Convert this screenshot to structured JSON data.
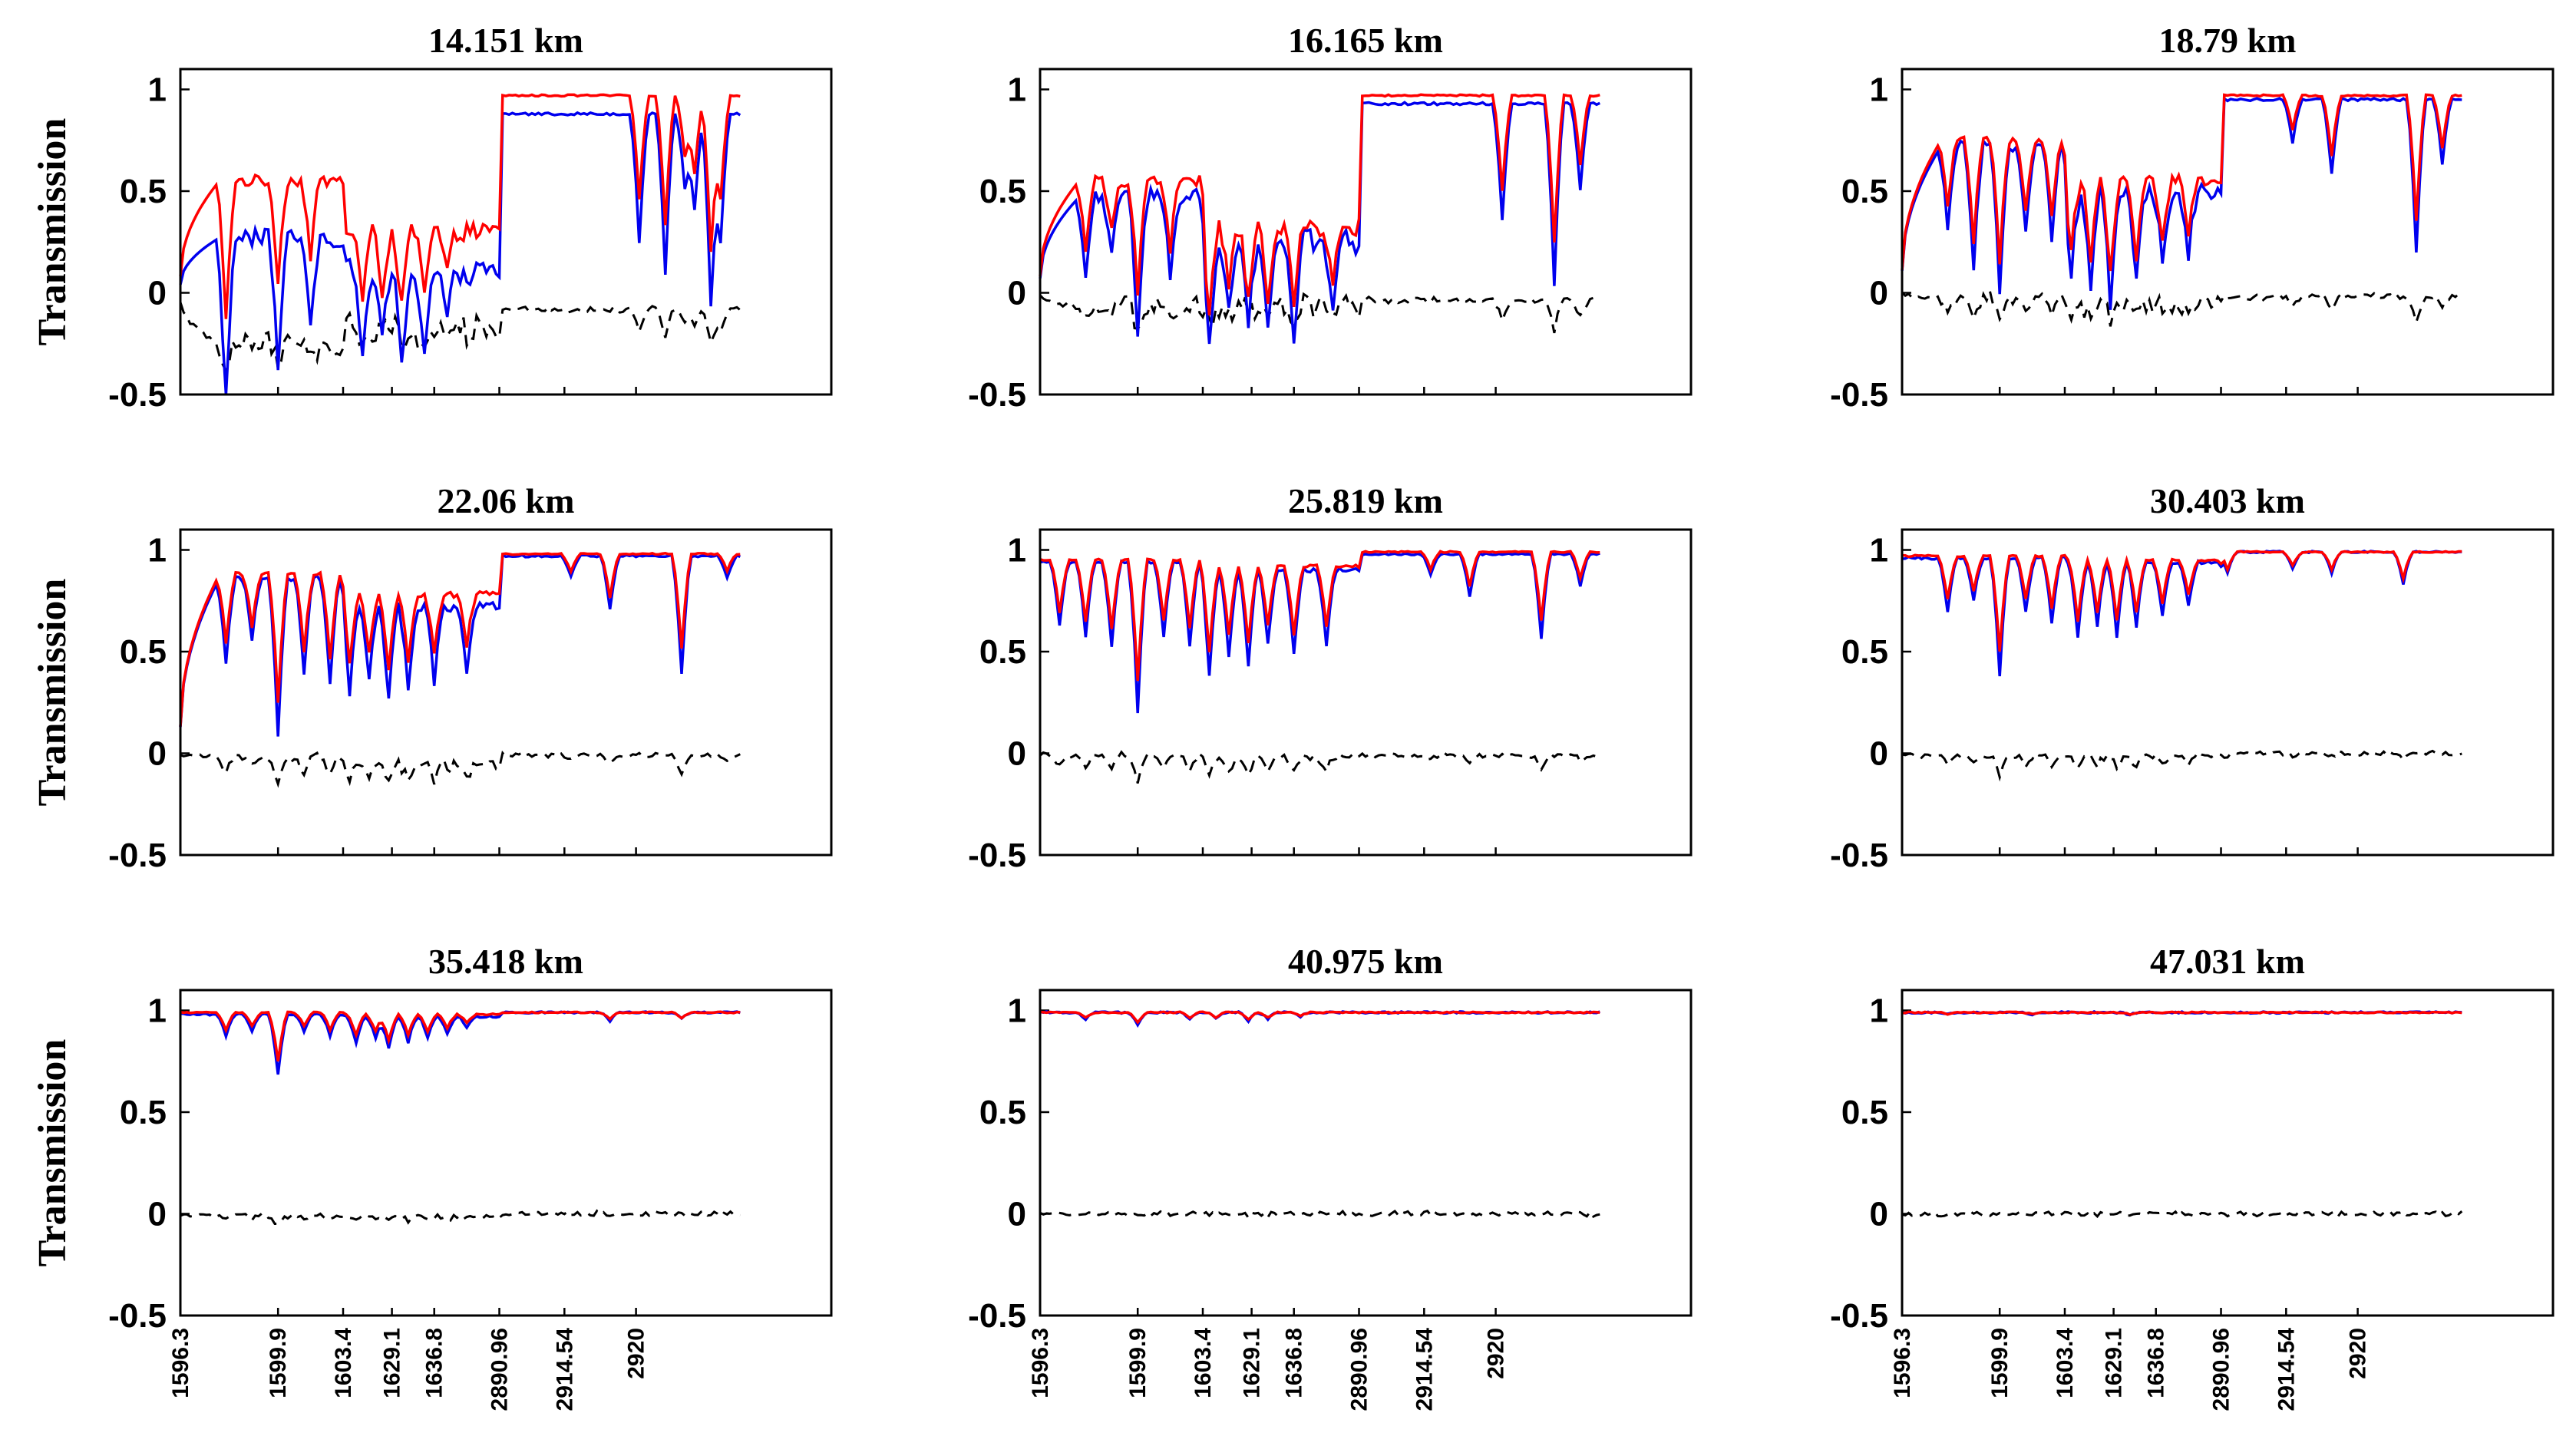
{
  "chart_data": {
    "type": "line",
    "ylabel": "Transmission",
    "ylim": [
      -0.5,
      1.1
    ],
    "yticks": [
      "1",
      "0.5",
      "0",
      "-0.5"
    ],
    "yticks_values": [
      1,
      0.5,
      0,
      -0.5
    ],
    "xticks": [
      "1596.3",
      "1599.9",
      "1603.4",
      "1629.1",
      "1636.8",
      "2890.96",
      "2914.54",
      "2920"
    ],
    "xticks_index": [
      0,
      30,
      50,
      65,
      78,
      98,
      118,
      140
    ],
    "x_range_index": [
      0,
      200
    ],
    "series_names": [
      "blue",
      "red",
      "difference"
    ],
    "series_colors": {
      "blue": "#0000ee",
      "red": "#ff0000",
      "difference": "#000000"
    },
    "panels": [
      {
        "title": "14.151 km",
        "segments": [
          {
            "x0": 0,
            "x1": 50,
            "red": 0.55,
            "blue": 0.27
          },
          {
            "x0": 50,
            "x1": 98,
            "red": 0.3,
            "blue": 0.1
          },
          {
            "x0": 98,
            "x1": 172,
            "red": 0.97,
            "blue": 0.88
          }
        ],
        "dips": [
          [
            14,
            0.82
          ],
          [
            30,
            0.6
          ],
          [
            40,
            0.45
          ],
          [
            56,
            0.4
          ],
          [
            62,
            0.35
          ],
          [
            68,
            0.45
          ],
          [
            75,
            0.38
          ],
          [
            82,
            0.25
          ],
          [
            141,
            0.6
          ],
          [
            149,
            0.75
          ],
          [
            155,
            0.35
          ],
          [
            158,
            0.45
          ],
          [
            163,
            0.9
          ],
          [
            166,
            0.6
          ]
        ]
      },
      {
        "title": "16.165 km",
        "segments": [
          {
            "x0": 0,
            "x1": 50,
            "red": 0.55,
            "blue": 0.47
          },
          {
            "x0": 50,
            "x1": 98,
            "red": 0.32,
            "blue": 0.25
          },
          {
            "x0": 98,
            "x1": 172,
            "red": 0.97,
            "blue": 0.93
          }
        ],
        "dips": [
          [
            14,
            0.4
          ],
          [
            22,
            0.3
          ],
          [
            30,
            0.65
          ],
          [
            40,
            0.4
          ],
          [
            52,
            0.5
          ],
          [
            58,
            0.35
          ],
          [
            64,
            0.45
          ],
          [
            70,
            0.4
          ],
          [
            78,
            0.45
          ],
          [
            90,
            0.35
          ],
          [
            142,
            0.55
          ],
          [
            158,
            0.85
          ],
          [
            166,
            0.4
          ]
        ]
      },
      {
        "title": "18.79 km",
        "segments": [
          {
            "x0": 0,
            "x1": 50,
            "red": 0.75,
            "blue": 0.72
          },
          {
            "x0": 50,
            "x1": 98,
            "red": 0.55,
            "blue": 0.5
          },
          {
            "x0": 98,
            "x1": 172,
            "red": 0.97,
            "blue": 0.95
          }
        ],
        "dips": [
          [
            14,
            0.4
          ],
          [
            22,
            0.6
          ],
          [
            30,
            0.7
          ],
          [
            38,
            0.4
          ],
          [
            46,
            0.45
          ],
          [
            52,
            0.4
          ],
          [
            58,
            0.45
          ],
          [
            64,
            0.55
          ],
          [
            72,
            0.45
          ],
          [
            80,
            0.35
          ],
          [
            88,
            0.3
          ],
          [
            120,
            0.2
          ],
          [
            132,
            0.35
          ],
          [
            158,
            0.72
          ],
          [
            166,
            0.3
          ]
        ]
      },
      {
        "title": "22.06 km",
        "segments": [
          {
            "x0": 0,
            "x1": 50,
            "red": 0.88,
            "blue": 0.86
          },
          {
            "x0": 50,
            "x1": 98,
            "red": 0.78,
            "blue": 0.72
          },
          {
            "x0": 98,
            "x1": 172,
            "red": 0.98,
            "blue": 0.97
          }
        ],
        "dips": [
          [
            14,
            0.4
          ],
          [
            22,
            0.3
          ],
          [
            30,
            0.75
          ],
          [
            38,
            0.45
          ],
          [
            46,
            0.5
          ],
          [
            52,
            0.4
          ],
          [
            58,
            0.35
          ],
          [
            64,
            0.45
          ],
          [
            70,
            0.4
          ],
          [
            78,
            0.35
          ],
          [
            88,
            0.3
          ],
          [
            120,
            0.1
          ],
          [
            132,
            0.25
          ],
          [
            154,
            0.55
          ],
          [
            168,
            0.1
          ]
        ]
      },
      {
        "title": "25.819 km",
        "segments": [
          {
            "x0": 0,
            "x1": 50,
            "red": 0.95,
            "blue": 0.94
          },
          {
            "x0": 50,
            "x1": 98,
            "red": 0.92,
            "blue": 0.9
          },
          {
            "x0": 98,
            "x1": 172,
            "red": 0.99,
            "blue": 0.98
          }
        ],
        "dips": [
          [
            6,
            0.3
          ],
          [
            14,
            0.35
          ],
          [
            22,
            0.4
          ],
          [
            30,
            0.7
          ],
          [
            38,
            0.35
          ],
          [
            46,
            0.4
          ],
          [
            52,
            0.5
          ],
          [
            58,
            0.4
          ],
          [
            64,
            0.45
          ],
          [
            70,
            0.35
          ],
          [
            78,
            0.4
          ],
          [
            88,
            0.35
          ],
          [
            120,
            0.1
          ],
          [
            132,
            0.2
          ],
          [
            154,
            0.4
          ],
          [
            166,
            0.15
          ]
        ]
      },
      {
        "title": "30.403 km",
        "segments": [
          {
            "x0": 0,
            "x1": 50,
            "red": 0.97,
            "blue": 0.96
          },
          {
            "x0": 50,
            "x1": 98,
            "red": 0.95,
            "blue": 0.94
          },
          {
            "x0": 98,
            "x1": 172,
            "red": 0.99,
            "blue": 0.99
          }
        ],
        "dips": [
          [
            14,
            0.25
          ],
          [
            22,
            0.2
          ],
          [
            30,
            0.55
          ],
          [
            38,
            0.25
          ],
          [
            46,
            0.3
          ],
          [
            54,
            0.35
          ],
          [
            60,
            0.3
          ],
          [
            66,
            0.35
          ],
          [
            72,
            0.3
          ],
          [
            80,
            0.25
          ],
          [
            88,
            0.2
          ],
          [
            100,
            0.1
          ],
          [
            120,
            0.08
          ],
          [
            132,
            0.1
          ],
          [
            154,
            0.15
          ]
        ]
      },
      {
        "title": "35.418 km",
        "segments": [
          {
            "x0": 0,
            "x1": 50,
            "red": 0.99,
            "blue": 0.98
          },
          {
            "x0": 50,
            "x1": 98,
            "red": 0.98,
            "blue": 0.97
          },
          {
            "x0": 98,
            "x1": 172,
            "red": 0.99,
            "blue": 0.99
          }
        ],
        "dips": [
          [
            14,
            0.1
          ],
          [
            22,
            0.08
          ],
          [
            30,
            0.28
          ],
          [
            38,
            0.08
          ],
          [
            46,
            0.1
          ],
          [
            54,
            0.12
          ],
          [
            60,
            0.1
          ],
          [
            64,
            0.15
          ],
          [
            70,
            0.12
          ],
          [
            76,
            0.1
          ],
          [
            82,
            0.08
          ],
          [
            88,
            0.05
          ],
          [
            132,
            0.04
          ],
          [
            154,
            0.03
          ]
        ]
      },
      {
        "title": "40.975 km",
        "segments": [
          {
            "x0": 0,
            "x1": 50,
            "red": 0.99,
            "blue": 0.99
          },
          {
            "x0": 50,
            "x1": 98,
            "red": 0.99,
            "blue": 0.99
          },
          {
            "x0": 98,
            "x1": 172,
            "red": 0.99,
            "blue": 0.99
          }
        ],
        "dips": [
          [
            14,
            0.03
          ],
          [
            30,
            0.06
          ],
          [
            46,
            0.03
          ],
          [
            54,
            0.03
          ],
          [
            64,
            0.04
          ],
          [
            70,
            0.03
          ],
          [
            80,
            0.02
          ]
        ]
      },
      {
        "title": "47.031 km",
        "segments": [
          {
            "x0": 0,
            "x1": 50,
            "red": 0.99,
            "blue": 0.99
          },
          {
            "x0": 50,
            "x1": 98,
            "red": 0.99,
            "blue": 0.99
          },
          {
            "x0": 98,
            "x1": 172,
            "red": 0.99,
            "blue": 0.99
          }
        ],
        "dips": [
          [
            14,
            0.01
          ],
          [
            40,
            0.01
          ],
          [
            70,
            0.01
          ]
        ]
      }
    ]
  }
}
